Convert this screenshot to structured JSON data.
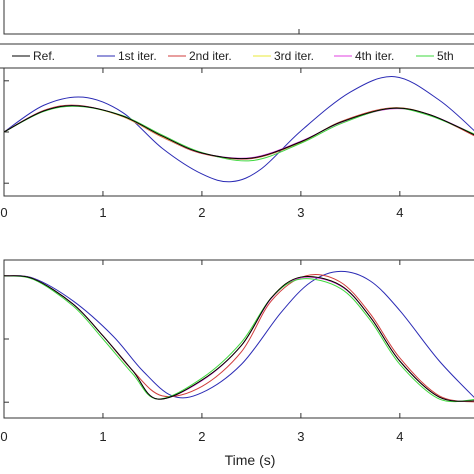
{
  "chart_data": {
    "type": "line",
    "xlabel": "Time (s)",
    "legend": {
      "placement": "top",
      "entries": [
        {
          "label": "Ref.",
          "color": "#000000"
        },
        {
          "label": "1st iter.",
          "color": "#2b2bb5"
        },
        {
          "label": "2nd iter.",
          "color": "#d03c3c"
        },
        {
          "label": "3rd iter.",
          "color": "#e8e83a"
        },
        {
          "label": "4th iter.",
          "color": "#e040e0"
        },
        {
          "label": "5th",
          "color": "#3fd83f"
        }
      ]
    },
    "panels": [
      {
        "name": "top-panel",
        "xlim": [
          0,
          4.8
        ],
        "ylim": [
          -1.25,
          1.25
        ],
        "xticks": [
          0,
          1,
          2,
          3,
          4
        ],
        "xtick_labels": [
          "0",
          "1",
          "2",
          "3",
          "4"
        ],
        "yticks": [
          -1,
          0,
          1
        ],
        "series": [
          {
            "color": "#2b2bb5",
            "x": [
              0,
              0.4,
              0.8,
              1.2,
              1.6,
              2.0,
              2.3,
              2.6,
              3.0,
              3.5,
              3.95,
              4.4,
              4.8
            ],
            "y": [
              0,
              0.52,
              0.68,
              0.38,
              -0.32,
              -0.82,
              -0.97,
              -0.72,
              0.02,
              0.78,
              1.08,
              0.62,
              -0.06
            ]
          },
          {
            "color": "#d03c3c",
            "x": [
              0,
              0.4,
              0.75,
              1.2,
              1.6,
              2.0,
              2.5,
              3.0,
              3.4,
              3.9,
              4.3,
              4.8
            ],
            "y": [
              0,
              0.42,
              0.52,
              0.3,
              -0.1,
              -0.42,
              -0.52,
              -0.2,
              0.2,
              0.47,
              0.34,
              -0.12
            ]
          },
          {
            "color": "#e8e83a",
            "x": [
              0,
              0.4,
              0.75,
              1.2,
              1.6,
              2.0,
              2.5,
              3.0,
              3.4,
              3.9,
              4.3,
              4.8
            ],
            "y": [
              0,
              0.41,
              0.51,
              0.3,
              -0.09,
              -0.41,
              -0.51,
              -0.19,
              0.19,
              0.46,
              0.34,
              -0.1
            ]
          },
          {
            "color": "#e040e0",
            "x": [
              0,
              0.4,
              0.75,
              1.2,
              1.6,
              2.0,
              2.5,
              3.0,
              3.4,
              3.9,
              4.3,
              4.8
            ],
            "y": [
              0,
              0.41,
              0.51,
              0.31,
              -0.08,
              -0.41,
              -0.5,
              -0.18,
              0.18,
              0.45,
              0.34,
              -0.09
            ]
          },
          {
            "color": "#3fd83f",
            "x": [
              0,
              0.4,
              0.75,
              1.2,
              1.6,
              2.0,
              2.5,
              3.0,
              3.4,
              3.9,
              4.3,
              4.8
            ],
            "y": [
              0,
              0.4,
              0.5,
              0.32,
              -0.06,
              -0.4,
              -0.56,
              -0.22,
              0.16,
              0.46,
              0.32,
              -0.08
            ]
          },
          {
            "color": "#000000",
            "x": [
              0,
              0.4,
              0.75,
              1.2,
              1.6,
              2.0,
              2.5,
              3.0,
              3.4,
              3.9,
              4.3,
              4.8
            ],
            "y": [
              0,
              0.41,
              0.51,
              0.31,
              -0.08,
              -0.41,
              -0.51,
              -0.19,
              0.19,
              0.46,
              0.34,
              -0.1
            ]
          }
        ]
      },
      {
        "name": "bottom-panel",
        "xlim": [
          0,
          4.8
        ],
        "ylim": [
          -1.25,
          1.25
        ],
        "xticks": [
          0,
          1,
          2,
          3,
          4
        ],
        "xtick_labels": [
          "0",
          "1",
          "2",
          "3",
          "4"
        ],
        "yticks": [
          -1,
          0,
          1
        ],
        "series": [
          {
            "color": "#2b2bb5",
            "x": [
              0,
              0.3,
              0.7,
              1.1,
              1.4,
              1.7,
              2.0,
              2.4,
              2.8,
              3.1,
              3.4,
              3.7,
              4.0,
              4.4,
              4.8
            ],
            "y": [
              1.0,
              0.96,
              0.6,
              0.05,
              -0.5,
              -0.9,
              -0.85,
              -0.4,
              0.42,
              0.9,
              1.07,
              0.92,
              0.45,
              -0.35,
              -1.0
            ]
          },
          {
            "color": "#d03c3c",
            "x": [
              0,
              0.3,
              0.7,
              1.0,
              1.3,
              1.6,
              2.0,
              2.4,
              2.7,
              3.05,
              3.4,
              3.7,
              4.0,
              4.4,
              4.8
            ],
            "y": [
              1.0,
              0.95,
              0.55,
              0.05,
              -0.5,
              -0.9,
              -0.75,
              -0.2,
              0.6,
              1.0,
              0.9,
              0.4,
              -0.3,
              -0.9,
              -1.0
            ]
          },
          {
            "color": "#e8e83a",
            "x": [
              0,
              0.3,
              0.7,
              1.0,
              1.3,
              1.55,
              2.0,
              2.4,
              2.7,
              3.0,
              3.4,
              3.7,
              4.0,
              4.4,
              4.8
            ],
            "y": [
              1.0,
              0.95,
              0.55,
              0.05,
              -0.5,
              -0.95,
              -0.65,
              -0.1,
              0.65,
              0.98,
              0.85,
              0.35,
              -0.35,
              -0.92,
              -0.98
            ]
          },
          {
            "color": "#e040e0",
            "x": [
              0,
              0.3,
              0.7,
              1.0,
              1.3,
              1.55,
              2.0,
              2.4,
              2.7,
              3.0,
              3.4,
              3.7,
              4.0,
              4.4,
              4.8
            ],
            "y": [
              1.0,
              0.95,
              0.55,
              0.05,
              -0.5,
              -0.95,
              -0.66,
              -0.1,
              0.64,
              0.97,
              0.84,
              0.35,
              -0.35,
              -0.92,
              -0.98
            ]
          },
          {
            "color": "#3fd83f",
            "x": [
              0,
              0.3,
              0.7,
              1.0,
              1.3,
              1.55,
              2.0,
              2.4,
              2.7,
              3.0,
              3.4,
              3.7,
              4.0,
              4.4,
              4.8
            ],
            "y": [
              1.0,
              0.94,
              0.52,
              0.0,
              -0.55,
              -0.95,
              -0.62,
              -0.05,
              0.65,
              0.95,
              0.8,
              0.3,
              -0.4,
              -0.95,
              -0.95
            ]
          },
          {
            "color": "#000000",
            "x": [
              0,
              0.3,
              0.7,
              1.0,
              1.3,
              1.55,
              2.0,
              2.4,
              2.7,
              3.0,
              3.4,
              3.7,
              4.0,
              4.4,
              4.8
            ],
            "y": [
              1.0,
              0.95,
              0.55,
              0.05,
              -0.5,
              -0.95,
              -0.65,
              -0.1,
              0.65,
              0.98,
              0.85,
              0.35,
              -0.35,
              -0.92,
              -0.98
            ]
          }
        ]
      }
    ]
  }
}
